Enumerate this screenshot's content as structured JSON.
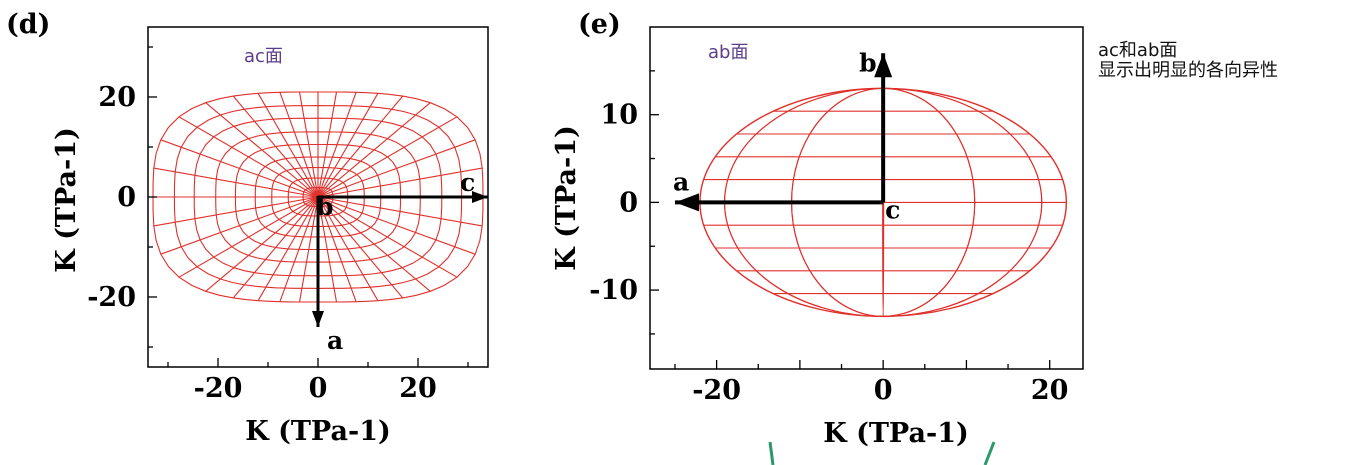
{
  "chart_data": [
    {
      "type": "polar-surface",
      "panel_label": "(d)",
      "plane_label": "ac面",
      "xlabel": "K (TPa-1)",
      "ylabel": "K (TPa-1)",
      "xlim": [
        -34,
        34
      ],
      "ylim": [
        -34,
        34
      ],
      "xticks": [
        -20,
        0,
        20
      ],
      "yticks": [
        -20,
        0,
        20
      ],
      "grid": false,
      "outline": {
        "half_width_x": 33,
        "half_height_y": 21,
        "flat_top_half_width": 30
      },
      "axes_arrows": [
        {
          "label": "c",
          "from": [
            0,
            0
          ],
          "to": [
            34,
            0
          ]
        },
        {
          "label": "a",
          "from": [
            0,
            0
          ],
          "to": [
            0,
            -26
          ]
        }
      ],
      "origin_label": "b"
    },
    {
      "type": "ellipsoid-surface",
      "panel_label": "(e)",
      "plane_label": "ab面",
      "xlabel": "K (TPa-1)",
      "ylabel": "K (TPa-1)",
      "xlim": [
        -28,
        24
      ],
      "ylim": [
        -19,
        20
      ],
      "xticks": [
        -20,
        0,
        20
      ],
      "yticks": [
        -10,
        0,
        10
      ],
      "grid": false,
      "outline": {
        "semi_axis_x": 22,
        "semi_axis_y": 13
      },
      "axes_arrows": [
        {
          "label": "b",
          "from": [
            0,
            0
          ],
          "to": [
            0,
            17
          ]
        },
        {
          "label": "a",
          "from": [
            0,
            0
          ],
          "to": [
            -25,
            0
          ]
        }
      ],
      "origin_label": "c"
    }
  ],
  "annotation": {
    "line1": "ac和ab面",
    "line2": "显示出明显的各向异性"
  },
  "colors": {
    "mesh": "#e0302b",
    "axis": "#000000",
    "label": "#5b3d8a",
    "stroke_accent": "#2a9a6a"
  }
}
